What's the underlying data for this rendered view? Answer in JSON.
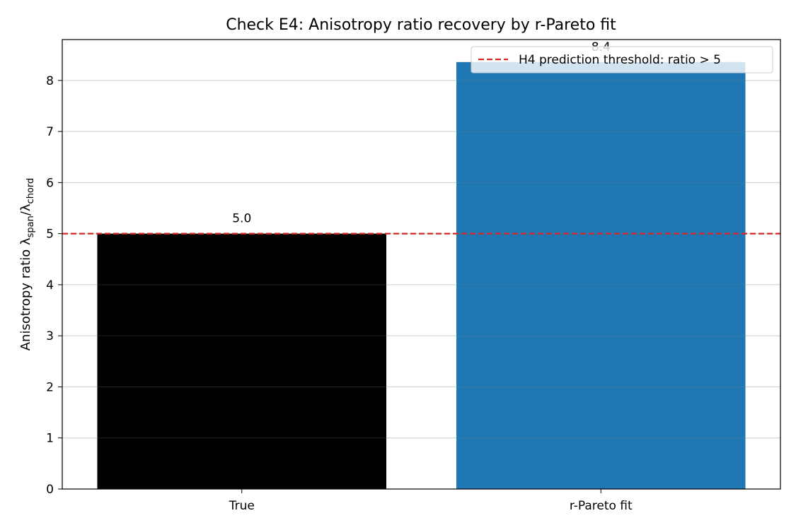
{
  "chart_data": {
    "type": "bar",
    "title": "Check E4: Anisotropy ratio recovery by r-Pareto fit",
    "xlabel": "",
    "ylabel": {
      "prefix": "Anisotropy ratio λ",
      "sub1": "span",
      "mid": "/λ",
      "sub2": "chord"
    },
    "categories": [
      "True",
      "r-Pareto fit"
    ],
    "values": [
      5.0,
      8.36
    ],
    "value_labels": [
      "5.0",
      "8.4"
    ],
    "bar_colors": [
      "#000000",
      "#1f77b4"
    ],
    "ylim": [
      0,
      8.8
    ],
    "yticks": [
      "0",
      "1",
      "2",
      "3",
      "4",
      "5",
      "6",
      "7",
      "8"
    ],
    "grid": "y-only, light gray",
    "threshold": {
      "value": 5,
      "label": "H4 prediction threshold: ratio > 5",
      "color": "#d62728",
      "style": "dashed"
    },
    "legend_placement": "top-right"
  }
}
